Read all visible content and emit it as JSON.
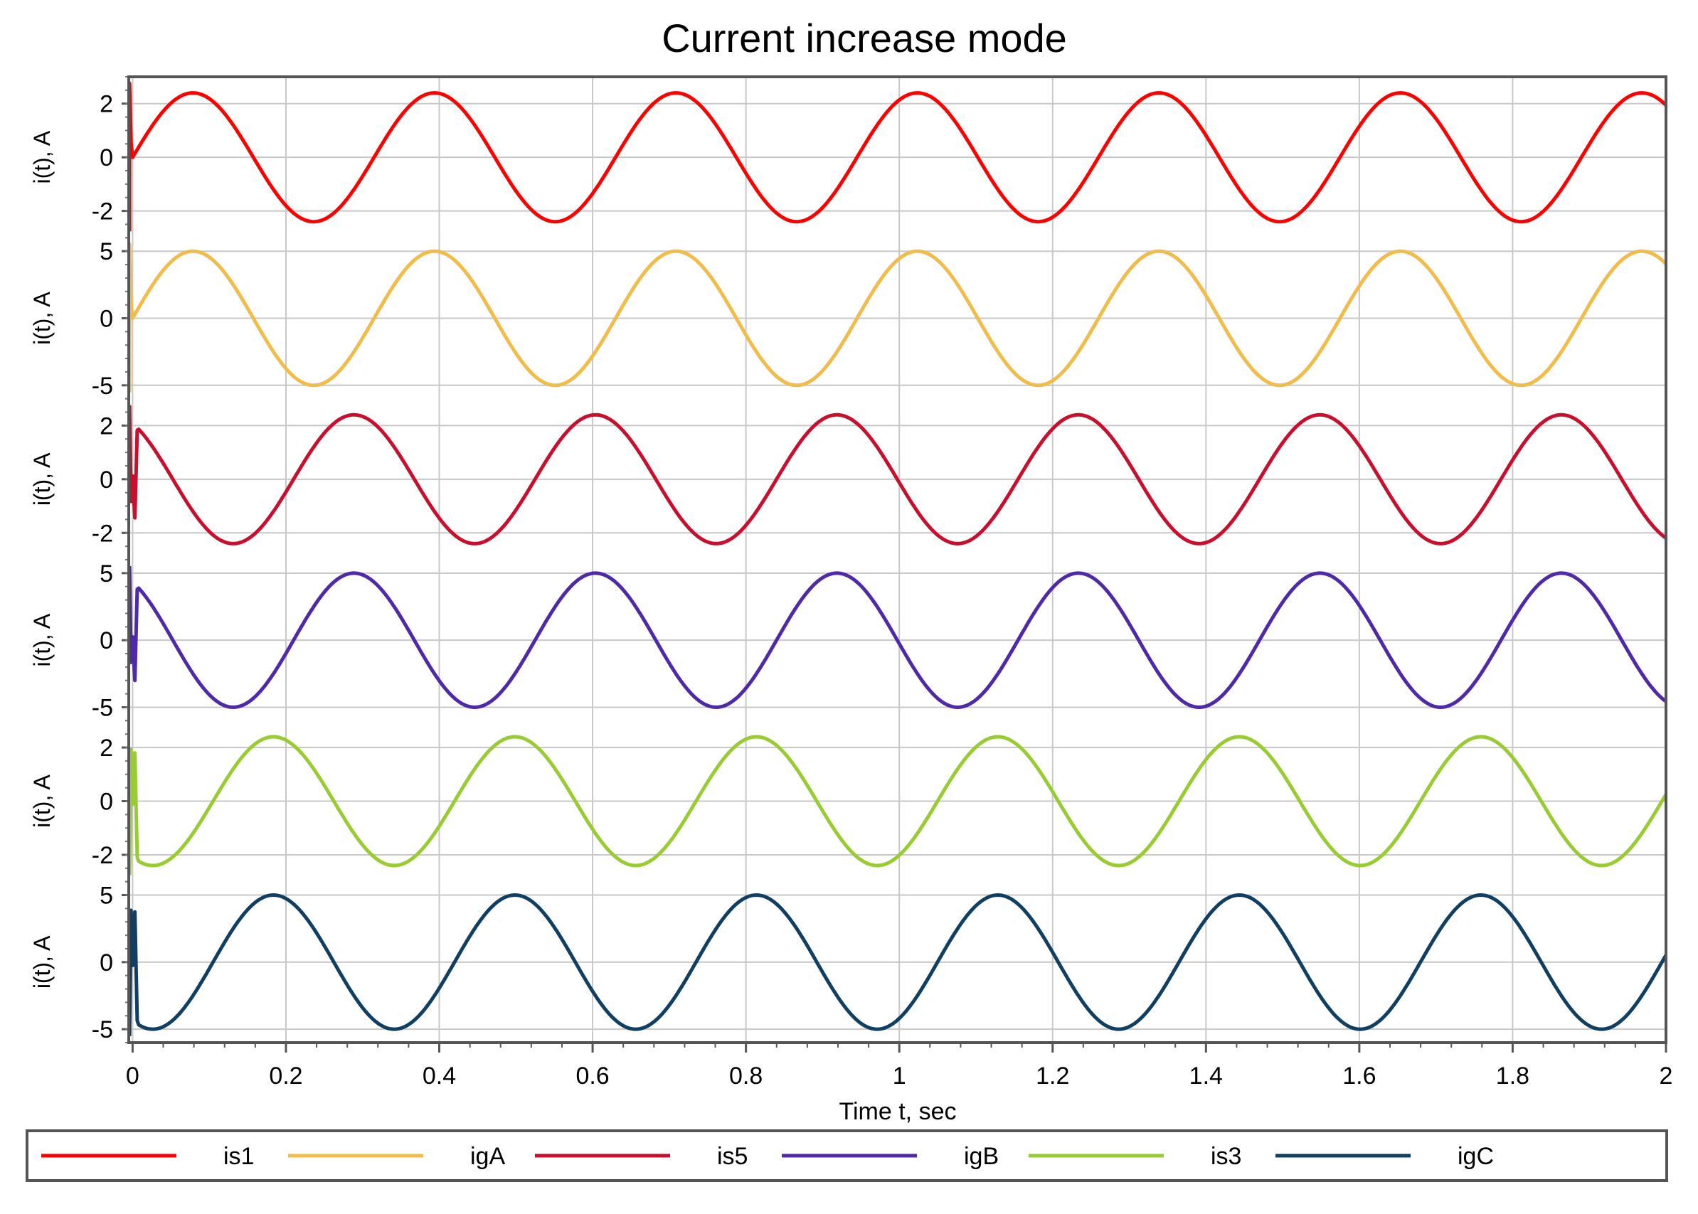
{
  "chart_data": {
    "type": "line",
    "title": "Current increase mode",
    "xlabel": "Time t, sec",
    "xlim": [
      -0.005,
      2
    ],
    "x_ticks": [
      "0",
      "0.2",
      "0.4",
      "0.6",
      "0.8",
      "1",
      "1.2",
      "1.4",
      "1.6",
      "1.8",
      "2"
    ],
    "x_tick_values": [
      0,
      0.2,
      0.4,
      0.6,
      0.8,
      1,
      1.2,
      1.4,
      1.6,
      1.8,
      2
    ],
    "grid": true,
    "legend_position": "bottom",
    "frequency_hz": 3.175,
    "panels": [
      {
        "name": "is1",
        "ylabel": "i(t), A",
        "color": "#ff0000",
        "amplitude": 2.4,
        "phase_deg": 0,
        "ylim": [
          -3,
          3
        ],
        "y_ticks": [
          -2,
          0,
          2
        ],
        "y_tick_labels": [
          "-2",
          "0",
          "2"
        ],
        "transient": "spike"
      },
      {
        "name": "igA",
        "ylabel": "i(t), A",
        "color": "#f2bc4b",
        "amplitude": 5,
        "phase_deg": 0,
        "ylim": [
          -6,
          6
        ],
        "y_ticks": [
          -5,
          0,
          5
        ],
        "y_tick_labels": [
          "-5",
          "0",
          "5"
        ],
        "transient": "spike"
      },
      {
        "name": "is5",
        "ylabel": "i(t), A",
        "color": "#c8102e",
        "amplitude": 2.4,
        "phase_deg": 240,
        "ylim": [
          -3,
          3
        ],
        "y_ticks": [
          -2,
          0,
          2
        ],
        "y_tick_labels": [
          "-2",
          "0",
          "2"
        ],
        "transient": "drop"
      },
      {
        "name": "igB",
        "ylabel": "i(t), A",
        "color": "#4e2aa8",
        "amplitude": 5,
        "phase_deg": 240,
        "ylim": [
          -6,
          6
        ],
        "y_ticks": [
          -5,
          0,
          5
        ],
        "y_tick_labels": [
          "-5",
          "0",
          "5"
        ],
        "transient": "drop"
      },
      {
        "name": "is3",
        "ylabel": "i(t), A",
        "color": "#99cc33",
        "amplitude": 2.4,
        "phase_deg": 120,
        "ylim": [
          -3,
          3
        ],
        "y_ticks": [
          -2,
          0,
          2
        ],
        "y_tick_labels": [
          "-2",
          "0",
          "2"
        ],
        "transient": "rise"
      },
      {
        "name": "igC",
        "ylabel": "i(t), A",
        "color": "#113f63",
        "amplitude": 5,
        "phase_deg": 120,
        "ylim": [
          -6,
          6
        ],
        "y_ticks": [
          -5,
          0,
          5
        ],
        "y_tick_labels": [
          "-5",
          "0",
          "5"
        ],
        "transient": "rise"
      }
    ],
    "legend": [
      "is1",
      "igA",
      "is5",
      "igB",
      "is3",
      "igC"
    ]
  }
}
